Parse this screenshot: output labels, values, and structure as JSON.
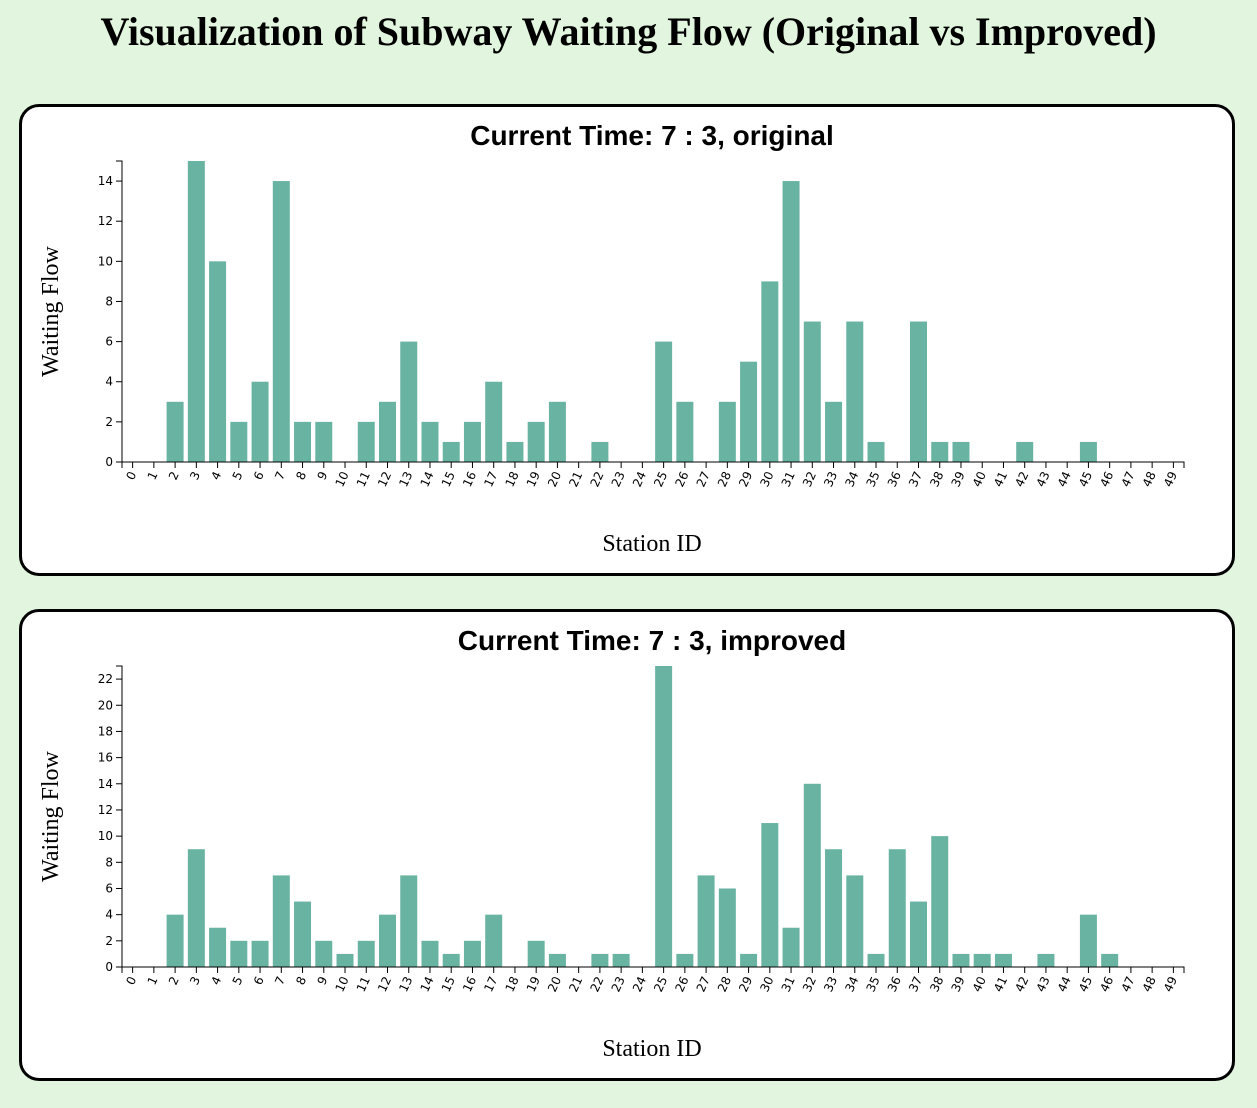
{
  "page": {
    "title": "Visualization of Subway Waiting Flow (Original vs Improved)",
    "bar_color": "#69b3a2",
    "background": "#e2f5de"
  },
  "chart_data": [
    {
      "type": "bar",
      "title": "Current Time: 7 : 3, original",
      "xlabel": "Station ID",
      "ylabel": "Waiting Flow",
      "categories": [
        "0",
        "1",
        "2",
        "3",
        "4",
        "5",
        "6",
        "7",
        "8",
        "9",
        "10",
        "11",
        "12",
        "13",
        "14",
        "15",
        "16",
        "17",
        "18",
        "19",
        "20",
        "21",
        "22",
        "23",
        "24",
        "25",
        "26",
        "27",
        "28",
        "29",
        "30",
        "31",
        "32",
        "33",
        "34",
        "35",
        "36",
        "37",
        "38",
        "39",
        "40",
        "41",
        "42",
        "43",
        "44",
        "45",
        "46",
        "47",
        "48",
        "49"
      ],
      "values": [
        0,
        0,
        3,
        15,
        10,
        2,
        4,
        14,
        2,
        2,
        0,
        2,
        3,
        6,
        2,
        1,
        2,
        4,
        1,
        2,
        3,
        0,
        1,
        0,
        0,
        6,
        3,
        0,
        3,
        5,
        9,
        14,
        7,
        3,
        7,
        1,
        0,
        7,
        1,
        1,
        0,
        0,
        1,
        0,
        0,
        1,
        0,
        0,
        0,
        0
      ],
      "ylim": [
        0,
        15
      ],
      "yticks": [
        0,
        2,
        4,
        6,
        8,
        10,
        12,
        14
      ],
      "grid": false
    },
    {
      "type": "bar",
      "title": "Current Time: 7 : 3, improved",
      "xlabel": "Station ID",
      "ylabel": "Waiting Flow",
      "categories": [
        "0",
        "1",
        "2",
        "3",
        "4",
        "5",
        "6",
        "7",
        "8",
        "9",
        "10",
        "11",
        "12",
        "13",
        "14",
        "15",
        "16",
        "17",
        "18",
        "19",
        "20",
        "21",
        "22",
        "23",
        "24",
        "25",
        "26",
        "27",
        "28",
        "29",
        "30",
        "31",
        "32",
        "33",
        "34",
        "35",
        "36",
        "37",
        "38",
        "39",
        "40",
        "41",
        "42",
        "43",
        "44",
        "45",
        "46",
        "47",
        "48",
        "49"
      ],
      "values": [
        0,
        0,
        4,
        9,
        3,
        2,
        2,
        7,
        5,
        2,
        1,
        2,
        4,
        7,
        2,
        1,
        2,
        4,
        0,
        2,
        1,
        0,
        1,
        1,
        0,
        23,
        1,
        7,
        6,
        1,
        11,
        3,
        14,
        9,
        7,
        1,
        9,
        5,
        10,
        1,
        1,
        1,
        0,
        1,
        0,
        4,
        1,
        0,
        0,
        0
      ],
      "ylim": [
        0,
        23
      ],
      "yticks": [
        0,
        2,
        4,
        6,
        8,
        10,
        12,
        14,
        16,
        18,
        20,
        22
      ],
      "grid": false
    }
  ]
}
